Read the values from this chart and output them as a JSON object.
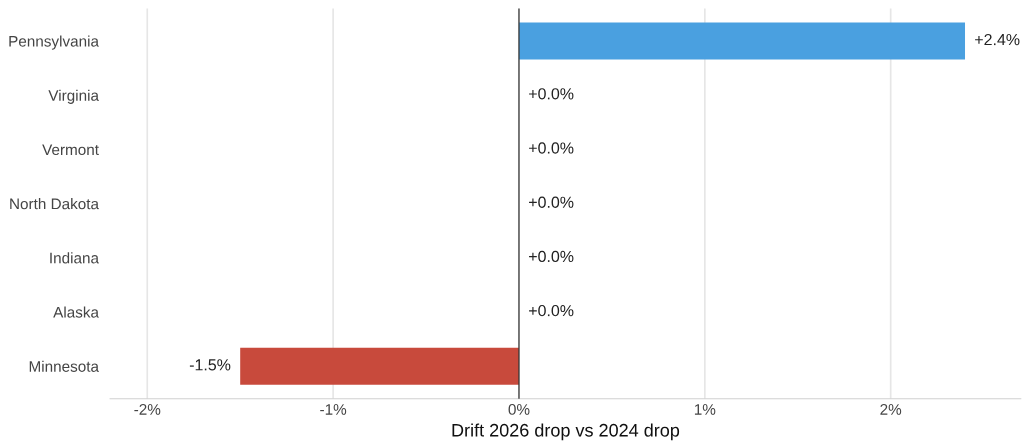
{
  "chart_data": {
    "type": "bar",
    "orientation": "horizontal",
    "xlabel": "Drift 2026 drop vs 2024 drop",
    "categories": [
      "Pennsylvania",
      "Virginia",
      "Vermont",
      "North Dakota",
      "Indiana",
      "Alaska",
      "Minnesota"
    ],
    "values": [
      2.4,
      0.0,
      0.0,
      0.0,
      0.0,
      0.0,
      -1.5
    ],
    "colors": [
      "#4aa0e0",
      "#4aa0e0",
      "#4aa0e0",
      "#4aa0e0",
      "#4aa0e0",
      "#4aa0e0",
      "#c84a3c"
    ],
    "value_labels": [
      "+2.4%",
      "+0.0%",
      "+0.0%",
      "+0.0%",
      "+0.0%",
      "+0.0%",
      "-1.5%"
    ],
    "xlim": [
      -2.2,
      2.7
    ],
    "xticks": [
      {
        "value": -2,
        "label": "-2%"
      },
      {
        "value": -1,
        "label": "-1%"
      },
      {
        "value": 0,
        "label": "0%"
      },
      {
        "value": 1,
        "label": "1%"
      },
      {
        "value": 2,
        "label": "2%"
      }
    ],
    "ref_lines": [
      {
        "axis": "x",
        "value": 0,
        "color": "#333333"
      }
    ],
    "grid": "x",
    "legend": false
  }
}
